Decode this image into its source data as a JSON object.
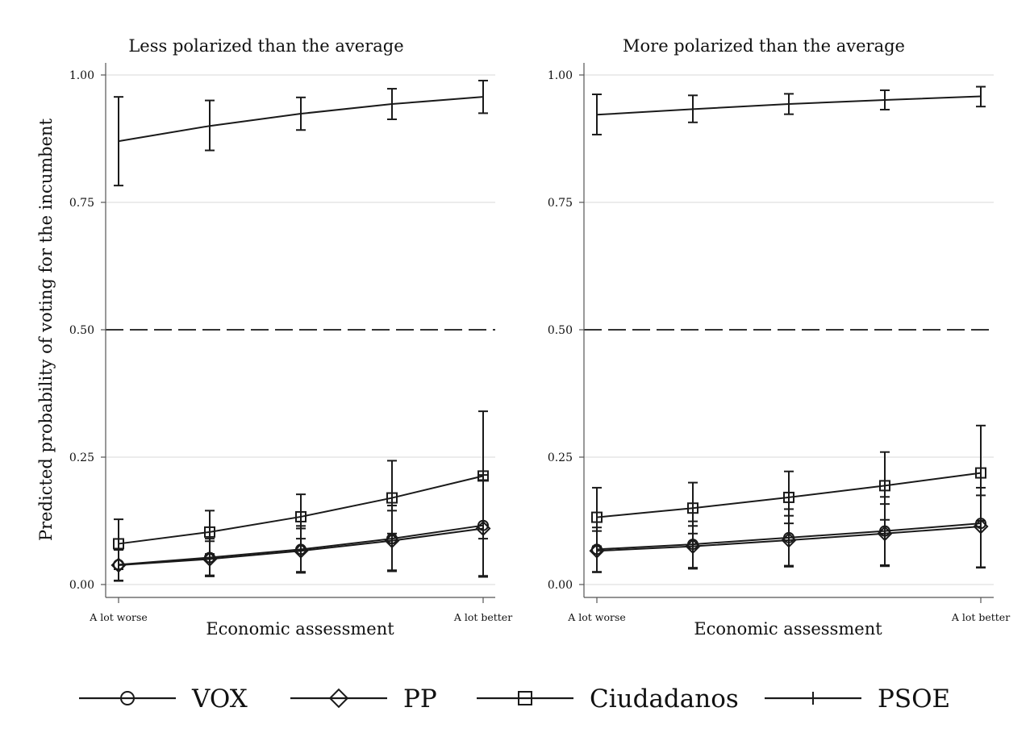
{
  "figure": {
    "ylabel": "Predicted probability of voting for the incumbent",
    "legend": [
      {
        "name": "VOX",
        "marker": "circle"
      },
      {
        "name": "PP",
        "marker": "diamond"
      },
      {
        "name": "Ciudadanos",
        "marker": "square"
      },
      {
        "name": "PSOE",
        "marker": "plus"
      }
    ],
    "legend_position": "bottom",
    "colors": {
      "line": "#1a1a1a",
      "grid": "#e6e6e6",
      "reference": "#333333"
    }
  },
  "chart_data": [
    {
      "type": "line",
      "title": "Less polarized than the average",
      "xlabel": "Economic assessment",
      "x": [
        1,
        2,
        3,
        4,
        5
      ],
      "x_tick_labels": [
        {
          "x": 1,
          "label": "A lot worse"
        },
        {
          "x": 5,
          "label": "A lot better"
        }
      ],
      "ylim": [
        -0.02,
        1.02
      ],
      "yticks": [
        0,
        0.25,
        0.5,
        0.75,
        1
      ],
      "ytick_labels": [
        "0.00",
        "0.25",
        "0.50",
        "0.75",
        "1.00"
      ],
      "grid": true,
      "reference_line": 0.5,
      "series": [
        {
          "name": "PSOE",
          "marker": "plus",
          "values": [
            0.87,
            0.9,
            0.924,
            0.943,
            0.957
          ],
          "lower": [
            0.783,
            0.852,
            0.892,
            0.913,
            0.925
          ],
          "upper": [
            0.957,
            0.95,
            0.956,
            0.973,
            0.989
          ]
        },
        {
          "name": "Ciudadanos",
          "marker": "square",
          "values": [
            0.08,
            0.103,
            0.133,
            0.17,
            0.213
          ],
          "lower": [
            0.03,
            0.06,
            0.09,
            0.1,
            0.09
          ],
          "upper": [
            0.128,
            0.145,
            0.177,
            0.243,
            0.34
          ]
        },
        {
          "name": "VOX",
          "marker": "circle",
          "values": [
            0.039,
            0.053,
            0.069,
            0.09,
            0.116
          ],
          "lower": [
            0.008,
            0.018,
            0.025,
            0.028,
            0.017
          ],
          "upper": [
            0.07,
            0.09,
            0.115,
            0.155,
            0.215
          ]
        },
        {
          "name": "PP",
          "marker": "diamond",
          "values": [
            0.038,
            0.05,
            0.066,
            0.086,
            0.11
          ],
          "lower": [
            0.007,
            0.016,
            0.023,
            0.026,
            0.015
          ],
          "upper": [
            0.068,
            0.085,
            0.11,
            0.145,
            0.205
          ]
        }
      ]
    },
    {
      "type": "line",
      "title": "More polarized than the average",
      "xlabel": "Economic assessment",
      "x": [
        1,
        2,
        3,
        4,
        5
      ],
      "x_tick_labels": [
        {
          "x": 1,
          "label": "A lot worse"
        },
        {
          "x": 5,
          "label": "A lot better"
        }
      ],
      "ylim": [
        -0.02,
        1.02
      ],
      "yticks": [
        0,
        0.25,
        0.5,
        0.75,
        1
      ],
      "ytick_labels": [
        "0.00",
        "0.25",
        "0.50",
        "0.75",
        "1.00"
      ],
      "grid": true,
      "reference_line": 0.5,
      "series": [
        {
          "name": "PSOE",
          "marker": "plus",
          "values": [
            0.922,
            0.933,
            0.943,
            0.951,
            0.958
          ],
          "lower": [
            0.883,
            0.907,
            0.923,
            0.932,
            0.938
          ],
          "upper": [
            0.962,
            0.96,
            0.963,
            0.97,
            0.977
          ]
        },
        {
          "name": "Ciudadanos",
          "marker": "square",
          "values": [
            0.132,
            0.15,
            0.171,
            0.194,
            0.219
          ],
          "lower": [
            0.075,
            0.1,
            0.12,
            0.127,
            0.125
          ],
          "upper": [
            0.19,
            0.2,
            0.222,
            0.26,
            0.312
          ]
        },
        {
          "name": "VOX",
          "marker": "circle",
          "values": [
            0.069,
            0.079,
            0.092,
            0.105,
            0.12
          ],
          "lower": [
            0.025,
            0.033,
            0.037,
            0.038,
            0.034
          ],
          "upper": [
            0.112,
            0.124,
            0.148,
            0.172,
            0.19
          ]
        },
        {
          "name": "PP",
          "marker": "diamond",
          "values": [
            0.066,
            0.075,
            0.087,
            0.1,
            0.114
          ],
          "lower": [
            0.024,
            0.031,
            0.035,
            0.036,
            0.033
          ],
          "upper": [
            0.105,
            0.115,
            0.135,
            0.158,
            0.175
          ]
        }
      ]
    }
  ]
}
